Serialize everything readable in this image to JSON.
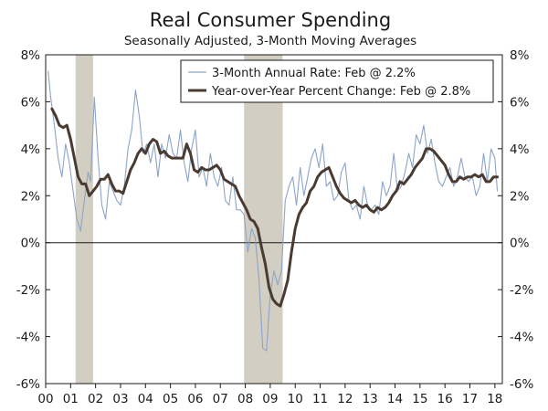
{
  "chart_data": {
    "type": "line",
    "title": "Real Consumer Spending",
    "subtitle": "Seasonally Adjusted, 3-Month Moving Averages",
    "xlabel": "",
    "ylabel": "",
    "xlim": [
      2000.0,
      2018.3
    ],
    "ylim": [
      -6,
      8
    ],
    "y_ticks": [
      "8%",
      "6%",
      "4%",
      "2%",
      "0%",
      "-2%",
      "-4%",
      "-6%"
    ],
    "y_tick_values": [
      8,
      6,
      4,
      2,
      0,
      -2,
      -4,
      -6
    ],
    "y_axis_right": true,
    "x_ticks": [
      "00",
      "01",
      "02",
      "03",
      "04",
      "05",
      "06",
      "07",
      "08",
      "09",
      "10",
      "11",
      "12",
      "13",
      "14",
      "15",
      "16",
      "17",
      "18"
    ],
    "x_tick_values": [
      2000,
      2001,
      2002,
      2003,
      2004,
      2005,
      2006,
      2007,
      2008,
      2009,
      2010,
      2011,
      2012,
      2013,
      2014,
      2015,
      2016,
      2017,
      2018
    ],
    "grid": false,
    "zero_line": true,
    "legend_placement": "top-right",
    "recession_shading": [
      {
        "start": 2001.2,
        "end": 2001.9
      },
      {
        "start": 2007.95,
        "end": 2009.5
      }
    ],
    "series": [
      {
        "name": "3-Month Annual Rate: Feb @ 2.2%",
        "color": "#8ca4c8",
        "x": [
          2000.1,
          2000.2,
          2000.35,
          2000.5,
          2000.65,
          2000.8,
          2000.95,
          2001.1,
          2001.25,
          2001.4,
          2001.55,
          2001.7,
          2001.8,
          2001.95,
          2002.1,
          2002.25,
          2002.4,
          2002.55,
          2002.7,
          2002.85,
          2003.0,
          2003.15,
          2003.3,
          2003.45,
          2003.6,
          2003.75,
          2003.9,
          2004.05,
          2004.2,
          2004.35,
          2004.5,
          2004.65,
          2004.8,
          2004.95,
          2005.1,
          2005.25,
          2005.4,
          2005.55,
          2005.7,
          2005.85,
          2006.0,
          2006.15,
          2006.3,
          2006.45,
          2006.6,
          2006.75,
          2006.9,
          2007.05,
          2007.2,
          2007.35,
          2007.5,
          2007.65,
          2007.8,
          2007.95,
          2008.1,
          2008.25,
          2008.4,
          2008.55,
          2008.7,
          2008.85,
          2009.0,
          2009.15,
          2009.3,
          2009.45,
          2009.6,
          2009.75,
          2009.9,
          2010.05,
          2010.2,
          2010.35,
          2010.5,
          2010.65,
          2010.8,
          2010.95,
          2011.1,
          2011.25,
          2011.4,
          2011.55,
          2011.7,
          2011.85,
          2012.0,
          2012.15,
          2012.3,
          2012.45,
          2012.6,
          2012.75,
          2012.9,
          2013.05,
          2013.2,
          2013.35,
          2013.5,
          2013.65,
          2013.8,
          2013.95,
          2014.1,
          2014.25,
          2014.4,
          2014.55,
          2014.7,
          2014.85,
          2015.0,
          2015.15,
          2015.3,
          2015.45,
          2015.6,
          2015.75,
          2015.9,
          2016.05,
          2016.2,
          2016.35,
          2016.5,
          2016.65,
          2016.8,
          2016.95,
          2017.1,
          2017.25,
          2017.4,
          2017.55,
          2017.7,
          2017.85,
          2018.0,
          2018.1
        ],
        "values": [
          7.3,
          6.2,
          5.0,
          3.6,
          2.8,
          4.2,
          3.4,
          2.2,
          1.0,
          0.5,
          1.8,
          3.0,
          2.6,
          6.2,
          3.6,
          1.6,
          1.0,
          2.6,
          2.2,
          1.8,
          1.6,
          2.4,
          4.0,
          4.8,
          6.5,
          5.4,
          3.8,
          4.2,
          3.4,
          4.2,
          2.8,
          4.2,
          3.6,
          4.6,
          3.8,
          3.6,
          4.8,
          3.4,
          2.6,
          4.0,
          4.8,
          2.8,
          3.2,
          2.4,
          3.8,
          2.8,
          2.4,
          3.2,
          1.8,
          1.6,
          2.8,
          1.4,
          1.4,
          1.2,
          -0.4,
          0.6,
          0.2,
          -1.6,
          -4.5,
          -4.6,
          -2.2,
          -1.2,
          -1.8,
          -1.2,
          1.8,
          2.4,
          2.8,
          1.6,
          3.2,
          2.0,
          2.8,
          3.6,
          4.0,
          3.2,
          4.2,
          2.4,
          2.6,
          1.8,
          2.0,
          3.0,
          3.4,
          1.8,
          1.4,
          1.6,
          1.0,
          2.4,
          1.6,
          1.4,
          1.6,
          1.2,
          2.6,
          2.0,
          2.4,
          3.8,
          2.2,
          2.4,
          3.0,
          3.8,
          3.2,
          4.6,
          4.2,
          5.0,
          3.8,
          4.4,
          3.4,
          2.6,
          2.4,
          2.8,
          3.2,
          2.4,
          2.8,
          3.6,
          2.8,
          2.6,
          2.8,
          2.0,
          2.4,
          3.8,
          2.6,
          4.0,
          3.6,
          2.2
        ]
      },
      {
        "name": "Year-over-Year Percent Change: Feb @ 2.8%",
        "color": "#4a3b32",
        "x": [
          2000.25,
          2000.4,
          2000.55,
          2000.7,
          2000.85,
          2001.0,
          2001.15,
          2001.3,
          2001.45,
          2001.6,
          2001.75,
          2001.9,
          2002.05,
          2002.2,
          2002.35,
          2002.5,
          2002.65,
          2002.8,
          2002.95,
          2003.1,
          2003.25,
          2003.4,
          2003.55,
          2003.7,
          2003.85,
          2004.0,
          2004.15,
          2004.3,
          2004.45,
          2004.6,
          2004.75,
          2004.9,
          2005.05,
          2005.2,
          2005.35,
          2005.5,
          2005.65,
          2005.8,
          2005.95,
          2006.1,
          2006.25,
          2006.4,
          2006.55,
          2006.7,
          2006.85,
          2007.0,
          2007.15,
          2007.3,
          2007.45,
          2007.6,
          2007.75,
          2007.9,
          2008.05,
          2008.2,
          2008.35,
          2008.5,
          2008.65,
          2008.8,
          2008.95,
          2009.1,
          2009.25,
          2009.4,
          2009.55,
          2009.7,
          2009.85,
          2010.0,
          2010.15,
          2010.3,
          2010.45,
          2010.6,
          2010.75,
          2010.9,
          2011.05,
          2011.2,
          2011.35,
          2011.5,
          2011.65,
          2011.8,
          2011.95,
          2012.1,
          2012.25,
          2012.4,
          2012.55,
          2012.7,
          2012.85,
          2013.0,
          2013.15,
          2013.3,
          2013.45,
          2013.6,
          2013.75,
          2013.9,
          2014.05,
          2014.2,
          2014.35,
          2014.5,
          2014.65,
          2014.8,
          2014.95,
          2015.1,
          2015.25,
          2015.4,
          2015.55,
          2015.7,
          2015.85,
          2016.0,
          2016.15,
          2016.3,
          2016.45,
          2016.6,
          2016.75,
          2016.9,
          2017.05,
          2017.2,
          2017.35,
          2017.5,
          2017.65,
          2017.8,
          2017.95,
          2018.1
        ],
        "values": [
          5.7,
          5.4,
          5.0,
          4.9,
          5.0,
          4.4,
          3.6,
          2.8,
          2.5,
          2.5,
          2.0,
          2.2,
          2.4,
          2.7,
          2.7,
          2.9,
          2.5,
          2.2,
          2.2,
          2.1,
          2.6,
          3.1,
          3.4,
          3.8,
          4.0,
          3.8,
          4.2,
          4.4,
          4.3,
          3.8,
          3.9,
          3.7,
          3.6,
          3.6,
          3.6,
          3.6,
          4.2,
          3.8,
          3.1,
          3.0,
          3.2,
          3.1,
          3.1,
          3.2,
          3.3,
          3.1,
          2.7,
          2.6,
          2.5,
          2.4,
          2.0,
          1.7,
          1.4,
          1.0,
          0.9,
          0.6,
          -0.2,
          -0.9,
          -1.9,
          -2.4,
          -2.6,
          -2.7,
          -2.2,
          -1.6,
          -0.4,
          0.6,
          1.2,
          1.5,
          1.7,
          2.2,
          2.4,
          2.8,
          3.0,
          3.1,
          3.2,
          2.8,
          2.4,
          2.1,
          1.9,
          1.8,
          1.7,
          1.8,
          1.6,
          1.5,
          1.6,
          1.4,
          1.3,
          1.5,
          1.4,
          1.5,
          1.7,
          2.0,
          2.2,
          2.6,
          2.5,
          2.7,
          2.9,
          3.2,
          3.4,
          3.6,
          4.0,
          4.0,
          3.9,
          3.7,
          3.5,
          3.3,
          2.9,
          2.6,
          2.6,
          2.8,
          2.7,
          2.8,
          2.8,
          2.9,
          2.8,
          2.9,
          2.6,
          2.6,
          2.8,
          2.8
        ],
        "last_value_label": "2.8%"
      }
    ]
  }
}
